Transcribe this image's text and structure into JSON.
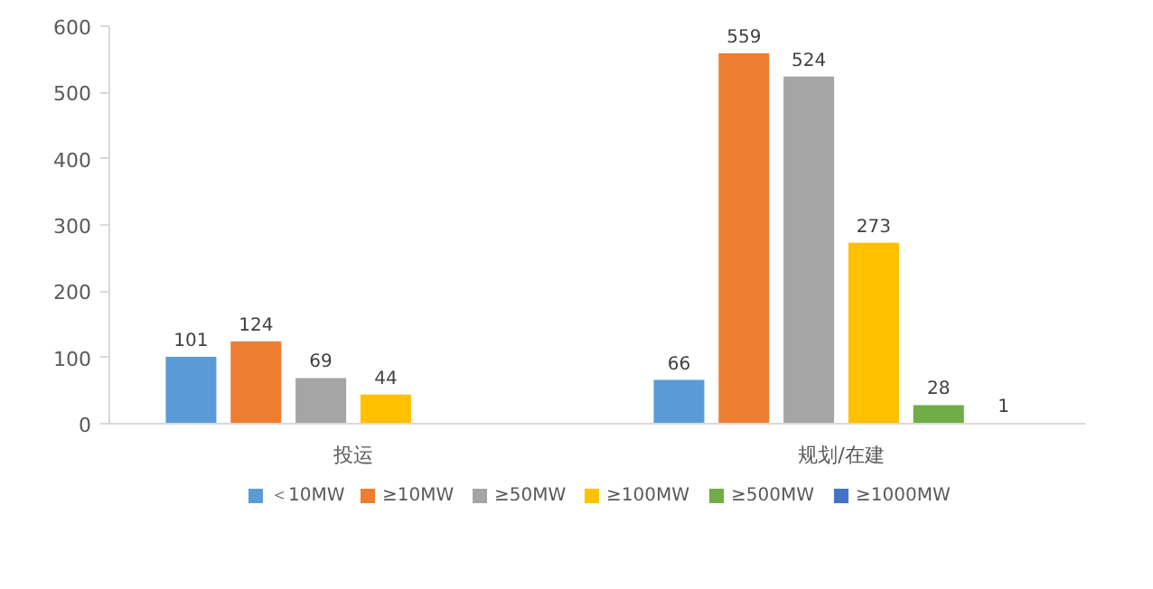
{
  "chart_data": {
    "type": "bar",
    "categories": [
      "投运",
      "规划/在建"
    ],
    "series": [
      {
        "name": "＜10MW",
        "color": "#5b9bd5",
        "values": [
          101,
          66
        ]
      },
      {
        "name": "≥10MW",
        "color": "#ed7d31",
        "values": [
          124,
          559
        ]
      },
      {
        "name": "≥50MW",
        "color": "#a5a5a5",
        "values": [
          69,
          524
        ]
      },
      {
        "name": "≥100MW",
        "color": "#ffc000",
        "values": [
          44,
          273
        ]
      },
      {
        "name": "≥500MW",
        "color": "#70ad47",
        "values": [
          null,
          28
        ]
      },
      {
        "name": "≥1000MW",
        "color": "#4472c4",
        "values": [
          null,
          1
        ]
      }
    ],
    "ylim": [
      0,
      600
    ],
    "yticks": [
      0,
      100,
      200,
      300,
      400,
      500,
      600
    ],
    "grid": false,
    "legend": "bottom",
    "data_labels": true
  }
}
